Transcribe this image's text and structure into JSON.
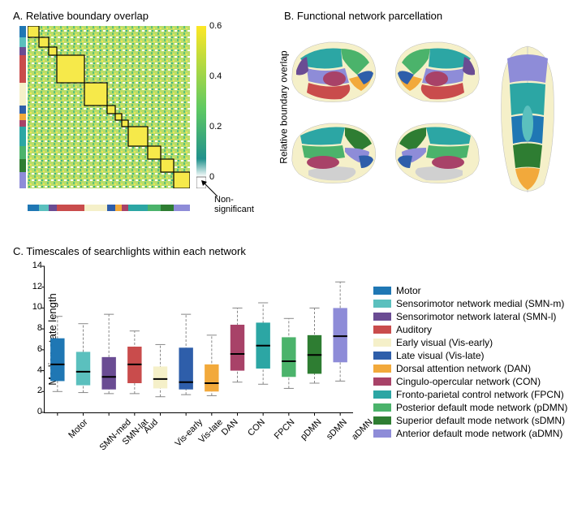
{
  "panelA": {
    "title": "A. Relative boundary overlap",
    "colorbar": {
      "min": 0.0,
      "max": 0.6,
      "ticks": [
        0,
        0.2,
        0.4,
        0.6
      ],
      "label": "Relative boundary overlap",
      "gradient_top": "#fde725",
      "gradient_mid": "#5ec962",
      "gradient_bot": "#ffffff",
      "ns_label": "Non-significant",
      "ns_color": "#ffffff"
    },
    "heatmap_bg": "#a8db82",
    "block_outline": "#000000",
    "networks_strip": [
      {
        "color": "#1f77b4",
        "w": 0.07
      },
      {
        "color": "#5bc0be",
        "w": 0.06
      },
      {
        "color": "#6a4c93",
        "w": 0.05
      },
      {
        "color": "#c94c4c",
        "w": 0.17
      },
      {
        "color": "#f5f0c9",
        "w": 0.14
      },
      {
        "color": "#2e5eaa",
        "w": 0.05
      },
      {
        "color": "#f2a93b",
        "w": 0.04
      },
      {
        "color": "#a84268",
        "w": 0.04
      },
      {
        "color": "#2ca6a4",
        "w": 0.12
      },
      {
        "color": "#4bb36b",
        "w": 0.08
      },
      {
        "color": "#2e7d32",
        "w": 0.08
      },
      {
        "color": "#8e8cd8",
        "w": 0.1
      }
    ]
  },
  "panelB": {
    "title": "B. Functional network parcellation"
  },
  "panelC": {
    "title": "C. Timescales of searchlights within each network",
    "ylabel": "Median state length",
    "ylim": [
      0,
      14
    ],
    "ytick_step": 2,
    "categories": [
      "Motor",
      "SMN-med",
      "SMN-lat",
      "Aud",
      "Vis-early",
      "Vis-late",
      "DAN",
      "CON",
      "FPCN",
      "pDMN",
      "sDMN",
      "aDMN"
    ],
    "boxes": [
      {
        "color": "#1f77b4",
        "q1": 3.0,
        "med": 4.6,
        "q3": 7.1,
        "wlo": 2.0,
        "whi": 9.2
      },
      {
        "color": "#5bc0be",
        "q1": 2.6,
        "med": 3.9,
        "q3": 5.8,
        "wlo": 1.9,
        "whi": 8.5
      },
      {
        "color": "#6a4c93",
        "q1": 2.2,
        "med": 3.4,
        "q3": 5.3,
        "wlo": 1.8,
        "whi": 9.4
      },
      {
        "color": "#c94c4c",
        "q1": 2.8,
        "med": 4.6,
        "q3": 6.3,
        "wlo": 1.8,
        "whi": 7.8
      },
      {
        "color": "#f5f0c9",
        "q1": 2.3,
        "med": 3.2,
        "q3": 4.4,
        "wlo": 1.5,
        "whi": 6.5
      },
      {
        "color": "#2e5eaa",
        "q1": 2.2,
        "med": 2.9,
        "q3": 6.2,
        "wlo": 1.7,
        "whi": 9.4
      },
      {
        "color": "#f2a93b",
        "q1": 2.0,
        "med": 2.8,
        "q3": 4.6,
        "wlo": 1.6,
        "whi": 7.4
      },
      {
        "color": "#a84268",
        "q1": 4.0,
        "med": 5.6,
        "q3": 8.4,
        "wlo": 2.9,
        "whi": 10.0
      },
      {
        "color": "#2ca6a4",
        "q1": 4.2,
        "med": 6.4,
        "q3": 8.6,
        "wlo": 2.7,
        "whi": 10.5
      },
      {
        "color": "#4bb36b",
        "q1": 3.4,
        "med": 4.9,
        "q3": 7.2,
        "wlo": 2.3,
        "whi": 9.0
      },
      {
        "color": "#2e7d32",
        "q1": 3.7,
        "med": 5.5,
        "q3": 7.4,
        "wlo": 2.8,
        "whi": 10.0
      },
      {
        "color": "#8e8cd8",
        "q1": 4.8,
        "med": 7.3,
        "q3": 10.0,
        "wlo": 3.0,
        "whi": 12.5
      }
    ],
    "box_width": 0.55,
    "whisker_color": "#666666",
    "median_color": "#000000"
  },
  "legend": {
    "items": [
      {
        "color": "#1f77b4",
        "label": "Motor"
      },
      {
        "color": "#5bc0be",
        "label": "Sensorimotor network medial (SMN-m)"
      },
      {
        "color": "#6a4c93",
        "label": "Sensorimotor network lateral (SMN-l)"
      },
      {
        "color": "#c94c4c",
        "label": "Auditory"
      },
      {
        "color": "#f5f0c9",
        "label": "Early visual (Vis-early)"
      },
      {
        "color": "#2e5eaa",
        "label": "Late visual (Vis-late)"
      },
      {
        "color": "#f2a93b",
        "label": "Dorsal attention network (DAN)"
      },
      {
        "color": "#a84268",
        "label": "Cingulo-opercular network (CON)"
      },
      {
        "color": "#2ca6a4",
        "label": "Fronto-parietal control network (FPCN)"
      },
      {
        "color": "#4bb36b",
        "label": "Posterior default mode network (pDMN)"
      },
      {
        "color": "#2e7d32",
        "label": "Superior default mode network (sDMN)"
      },
      {
        "color": "#8e8cd8",
        "label": "Anterior default mode network (aDMN)"
      }
    ]
  }
}
